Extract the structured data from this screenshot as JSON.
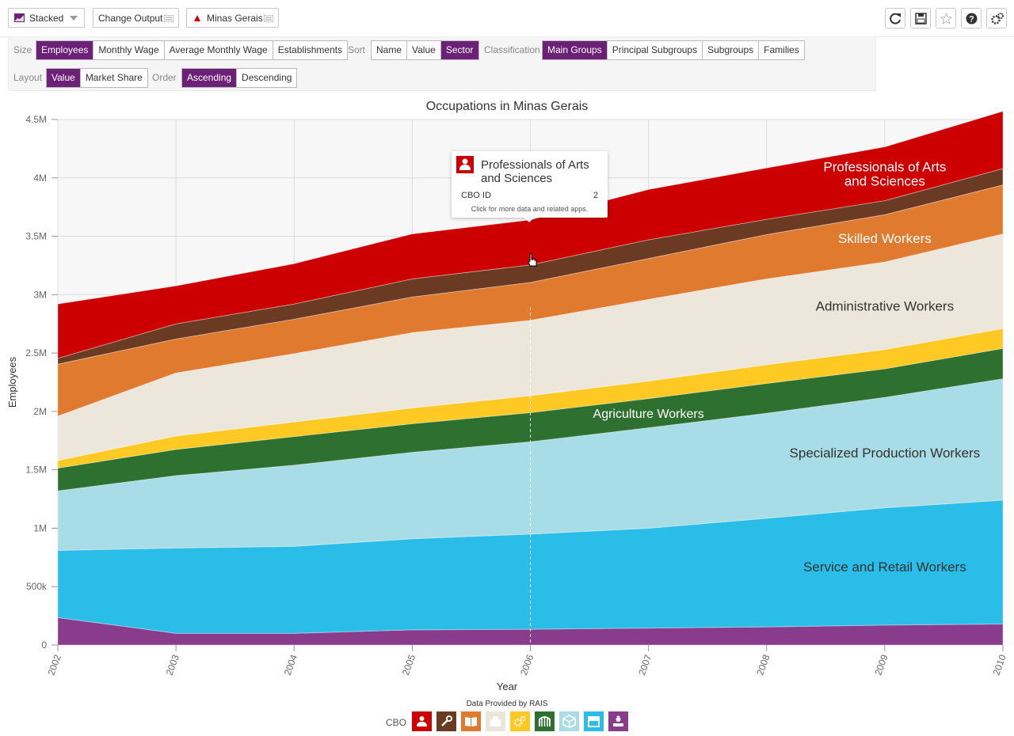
{
  "topbar": {
    "view_label": "Stacked",
    "change_output_label": "Change Output",
    "location_label": "Minas Gerais",
    "icons": [
      "refresh-icon",
      "save-icon",
      "star-icon",
      "help-icon",
      "settings-icon"
    ]
  },
  "controls": {
    "size": {
      "label": "Size",
      "options": [
        "Employees",
        "Monthly Wage",
        "Average Monthly Wage",
        "Establishments"
      ],
      "selected": "Employees"
    },
    "sort": {
      "label": "Sort",
      "options": [
        "Name",
        "Value",
        "Sector"
      ],
      "selected": "Sector"
    },
    "classification": {
      "label": "Classification",
      "options": [
        "Main Groups",
        "Principal Subgroups",
        "Subgroups",
        "Families"
      ],
      "selected": "Main Groups"
    },
    "layout": {
      "label": "Layout",
      "options": [
        "Value",
        "Market Share"
      ],
      "selected": "Value"
    },
    "order": {
      "label": "Order",
      "options": [
        "Ascending",
        "Descending"
      ],
      "selected": "Ascending"
    }
  },
  "tooltip": {
    "title": "Professionals of Arts and Sciences",
    "key": "CBO ID",
    "value": "2",
    "footer": "Click for more data and related apps."
  },
  "footer": {
    "source": "Data Provided by RAIS",
    "legend_label": "CBO",
    "legend_icons": [
      {
        "name": "professionals-icon",
        "color": "#cc0000"
      },
      {
        "name": "wrench-icon",
        "color": "#6b3a22"
      },
      {
        "name": "book-icon",
        "color": "#e07a2e"
      },
      {
        "name": "office-icon",
        "color": "#ede6da"
      },
      {
        "name": "gears-icon",
        "color": "#ffc923"
      },
      {
        "name": "agriculture-icon",
        "color": "#2e7030"
      },
      {
        "name": "box-icon",
        "color": "#a8dce6"
      },
      {
        "name": "store-icon",
        "color": "#29bde8"
      },
      {
        "name": "military-icon",
        "color": "#8a3c8c"
      }
    ]
  },
  "chart_data": {
    "type": "area",
    "stacked": true,
    "title": "Occupations in Minas Gerais",
    "xlabel": "Year",
    "ylabel": "Employees",
    "x": [
      2002,
      2003,
      2004,
      2005,
      2006,
      2007,
      2008,
      2009,
      2010
    ],
    "ylim": [
      0,
      4500000
    ],
    "yticks": [
      0,
      500000,
      1000000,
      1500000,
      2000000,
      2500000,
      3000000,
      3500000,
      4000000,
      4500000
    ],
    "ytick_labels": [
      "0",
      "500k",
      "1M",
      "1.5M",
      "2M",
      "2.5M",
      "3M",
      "3.5M",
      "4M",
      "4.5M"
    ],
    "grid": true,
    "series": [
      {
        "name": "",
        "color": "#8a3c8c",
        "values": [
          235000,
          100000,
          100000,
          130000,
          135000,
          145000,
          155000,
          170000,
          180000
        ]
      },
      {
        "name": "Service and Retail Workers",
        "color": "#29bde8",
        "values": [
          575000,
          730000,
          745000,
          780000,
          815000,
          855000,
          930000,
          1005000,
          1060000
        ]
      },
      {
        "name": "Specialized Production Workers",
        "color": "#a8dce6",
        "values": [
          510000,
          620000,
          695000,
          740000,
          790000,
          860000,
          900000,
          945000,
          1040000
        ]
      },
      {
        "name": "Agriculture Workers",
        "color": "#2e7030",
        "values": [
          195000,
          225000,
          245000,
          245000,
          250000,
          250000,
          255000,
          245000,
          260000
        ]
      },
      {
        "name": "",
        "color": "#ffc923",
        "values": [
          65000,
          115000,
          125000,
          135000,
          145000,
          150000,
          160000,
          165000,
          170000
        ]
      },
      {
        "name": "Administrative Workers",
        "color": "#ede6da",
        "values": [
          380000,
          540000,
          585000,
          645000,
          645000,
          700000,
          735000,
          750000,
          810000
        ]
      },
      {
        "name": "Skilled Workers",
        "color": "#e07a2e",
        "values": [
          445000,
          290000,
          295000,
          305000,
          325000,
          350000,
          380000,
          405000,
          420000
        ]
      },
      {
        "name": "",
        "color": "#6b3a22",
        "values": [
          50000,
          130000,
          130000,
          155000,
          150000,
          160000,
          130000,
          120000,
          140000
        ]
      },
      {
        "name": "Professionals of Arts and Sciences",
        "color": "#cc0000",
        "values": [
          465000,
          325000,
          345000,
          385000,
          385000,
          430000,
          440000,
          460000,
          490000
        ]
      }
    ],
    "hover_year": 2006
  }
}
